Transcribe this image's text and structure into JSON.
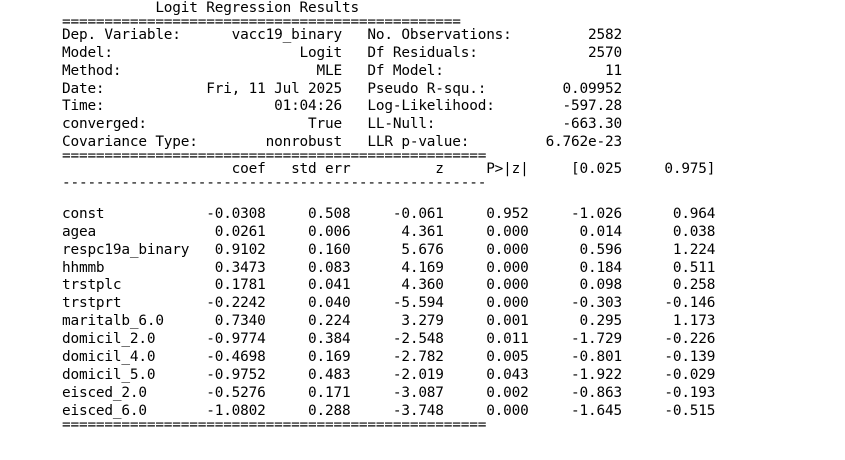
{
  "title": "Logit Regression Results",
  "top_info": [
    {
      "left_label": "Dep. Variable:",
      "left_value": "vacc19_binary",
      "right_label": "No. Observations:",
      "right_value": "2582"
    },
    {
      "left_label": "Model:",
      "left_value": "Logit",
      "right_label": "Df Residuals:",
      "right_value": "2570"
    },
    {
      "left_label": "Method:",
      "left_value": "MLE",
      "right_label": "Df Model:",
      "right_value": "11"
    },
    {
      "left_label": "Date:",
      "left_value": "Fri, 11 Jul 2025",
      "right_label": "Pseudo R-squ.:",
      "right_value": "0.09952"
    },
    {
      "left_label": "Time:",
      "left_value": "01:04:26",
      "right_label": "Log-Likelihood:",
      "right_value": "-597.28"
    },
    {
      "left_label": "converged:",
      "left_value": "True",
      "right_label": "LL-Null:",
      "right_value": "-663.30"
    },
    {
      "left_label": "Covariance Type:",
      "left_value": "nonrobust",
      "right_label": "LLR p-value:",
      "right_value": "6.762e-23"
    }
  ],
  "coef_table": {
    "headers": [
      "coef",
      "std err",
      "z",
      "P>|z|",
      "[0.025",
      "0.975]"
    ],
    "rows": [
      {
        "name": "const",
        "coef": "-0.0308",
        "std_err": "0.508",
        "z": "-0.061",
        "p": "0.952",
        "ci_low": "-1.026",
        "ci_high": "0.964"
      },
      {
        "name": "agea",
        "coef": "0.0261",
        "std_err": "0.006",
        "z": "4.361",
        "p": "0.000",
        "ci_low": "0.014",
        "ci_high": "0.038"
      },
      {
        "name": "respc19a_binary",
        "coef": "0.9102",
        "std_err": "0.160",
        "z": "5.676",
        "p": "0.000",
        "ci_low": "0.596",
        "ci_high": "1.224"
      },
      {
        "name": "hhmmb",
        "coef": "0.3473",
        "std_err": "0.083",
        "z": "4.169",
        "p": "0.000",
        "ci_low": "0.184",
        "ci_high": "0.511"
      },
      {
        "name": "trstplc",
        "coef": "0.1781",
        "std_err": "0.041",
        "z": "4.360",
        "p": "0.000",
        "ci_low": "0.098",
        "ci_high": "0.258"
      },
      {
        "name": "trstprt",
        "coef": "-0.2242",
        "std_err": "0.040",
        "z": "-5.594",
        "p": "0.000",
        "ci_low": "-0.303",
        "ci_high": "-0.146"
      },
      {
        "name": "maritalb_6.0",
        "coef": "0.7340",
        "std_err": "0.224",
        "z": "3.279",
        "p": "0.001",
        "ci_low": "0.295",
        "ci_high": "1.173"
      },
      {
        "name": "domicil_2.0",
        "coef": "-0.9774",
        "std_err": "0.384",
        "z": "-2.548",
        "p": "0.011",
        "ci_low": "-1.729",
        "ci_high": "-0.226"
      },
      {
        "name": "domicil_4.0",
        "coef": "-0.4698",
        "std_err": "0.169",
        "z": "-2.782",
        "p": "0.005",
        "ci_low": "-0.801",
        "ci_high": "-0.139"
      },
      {
        "name": "domicil_5.0",
        "coef": "-0.9752",
        "std_err": "0.483",
        "z": "-2.019",
        "p": "0.043",
        "ci_low": "-1.922",
        "ci_high": "-0.029"
      },
      {
        "name": "eisced_2.0",
        "coef": "-0.5276",
        "std_err": "0.171",
        "z": "-3.087",
        "p": "0.002",
        "ci_low": "-0.863",
        "ci_high": "-0.193"
      },
      {
        "name": "eisced_6.0",
        "coef": "-1.0802",
        "std_err": "0.288",
        "z": "-3.748",
        "p": "0.000",
        "ci_low": "-1.645",
        "ci_high": "-0.515"
      }
    ]
  }
}
